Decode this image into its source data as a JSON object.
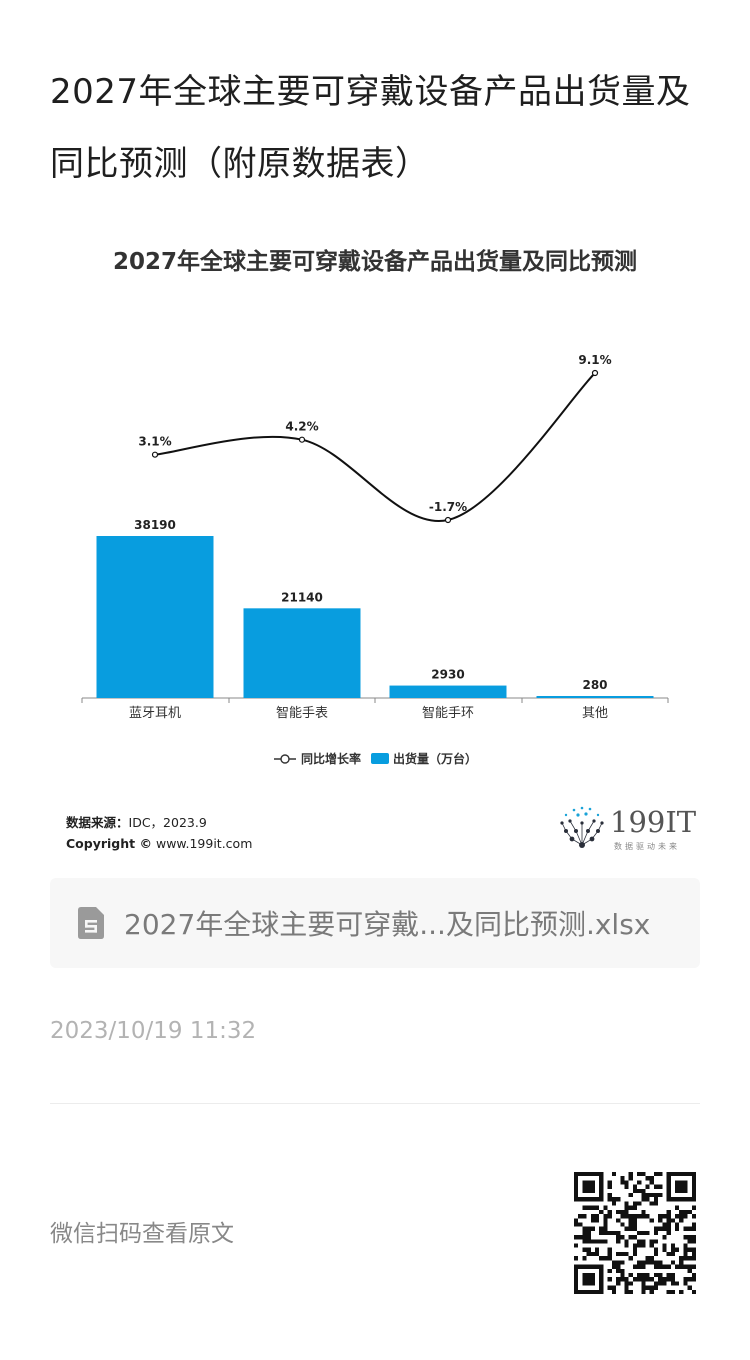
{
  "page": {
    "title": "2027年全球主要可穿戴设备产品出货量及同比预测（附原数据表）",
    "source_label": "数据来源：",
    "source_value": "IDC，2023.9",
    "copyright_label": "Copyright ©",
    "copyright_value": "www.199it.com",
    "logo_text": "199IT",
    "logo_sub": "数据驱动未来",
    "file_name": "2027年全球主要可穿戴...及同比预测.xlsx",
    "timestamp": "2023/10/19 11:32",
    "scan_text": "微信扫码查看原文",
    "icons": [
      "file-icon",
      "qr-code-icon",
      "logo-icon"
    ]
  },
  "colors": {
    "bar": "#089ddf",
    "line": "#111111",
    "axis": "#888888"
  },
  "chart_data": {
    "type": "bar",
    "title": "2027年全球主要可穿戴设备产品出货量及同比预测",
    "categories": [
      "蓝牙耳机",
      "智能手表",
      "智能手环",
      "其他"
    ],
    "series": [
      {
        "name": "出货量（万台）",
        "type": "bar",
        "values": [
          38190,
          21140,
          2930,
          280
        ],
        "labels": [
          "38190",
          "21140",
          "2930",
          "280"
        ]
      },
      {
        "name": "同比增长率",
        "type": "line",
        "values": [
          3.1,
          4.2,
          -1.7,
          9.1
        ],
        "labels": [
          "3.1%",
          "4.2%",
          "-1.7%",
          "9.1%"
        ]
      }
    ],
    "legend": [
      "同比增长率",
      "出货量（万台）"
    ],
    "legend_position": "bottom",
    "grid": false
  }
}
